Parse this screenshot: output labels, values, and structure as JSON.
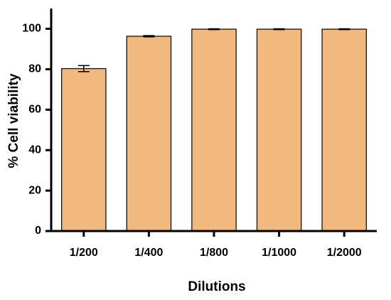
{
  "chart_data": {
    "type": "bar",
    "x_label": "Dilutions",
    "y_label": "% Cell viability",
    "categories": [
      "1/200",
      "1/400",
      "1/800",
      "1/1000",
      "1/2000"
    ],
    "values": [
      80.3,
      96.3,
      99.8,
      99.8,
      99.8
    ],
    "errors": [
      1.5,
      0.3,
      0.2,
      0.2,
      0.2
    ],
    "color": "#f2b97e",
    "ylim": [
      0,
      110
    ],
    "yticks": [
      0,
      20,
      40,
      60,
      80,
      100
    ],
    "grid": false
  }
}
